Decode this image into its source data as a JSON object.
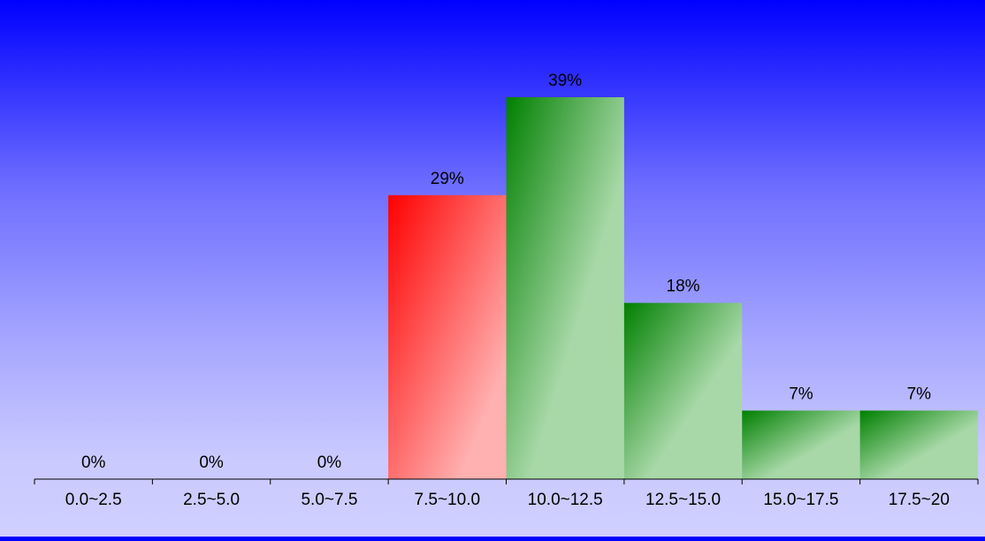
{
  "chart_data": {
    "type": "bar",
    "title": "",
    "xlabel": "",
    "ylabel": "",
    "categories": [
      "0.0~2.5",
      "2.5~5.0",
      "5.0~7.5",
      "7.5~10.0",
      "10.0~12.5",
      "12.5~15.0",
      "15.0~17.5",
      "17.5~20"
    ],
    "values": [
      0,
      0,
      0,
      29,
      39,
      18,
      7,
      7
    ],
    "data_labels": [
      "0%",
      "0%",
      "0%",
      "29%",
      "39%",
      "18%",
      "7%",
      "7%"
    ],
    "unit": "%",
    "ylim": [
      0,
      39
    ],
    "grid": false,
    "legend": "none",
    "highlight_index": 3,
    "colors": {
      "highlight_start": "#ff0000",
      "highlight_end": "#ffb0b0",
      "bar_start": "#008000",
      "bar_end": "#a8d8a8",
      "axis": "#000000",
      "background_top": "#0000ff",
      "background_bottom": "#cfcfff"
    }
  }
}
